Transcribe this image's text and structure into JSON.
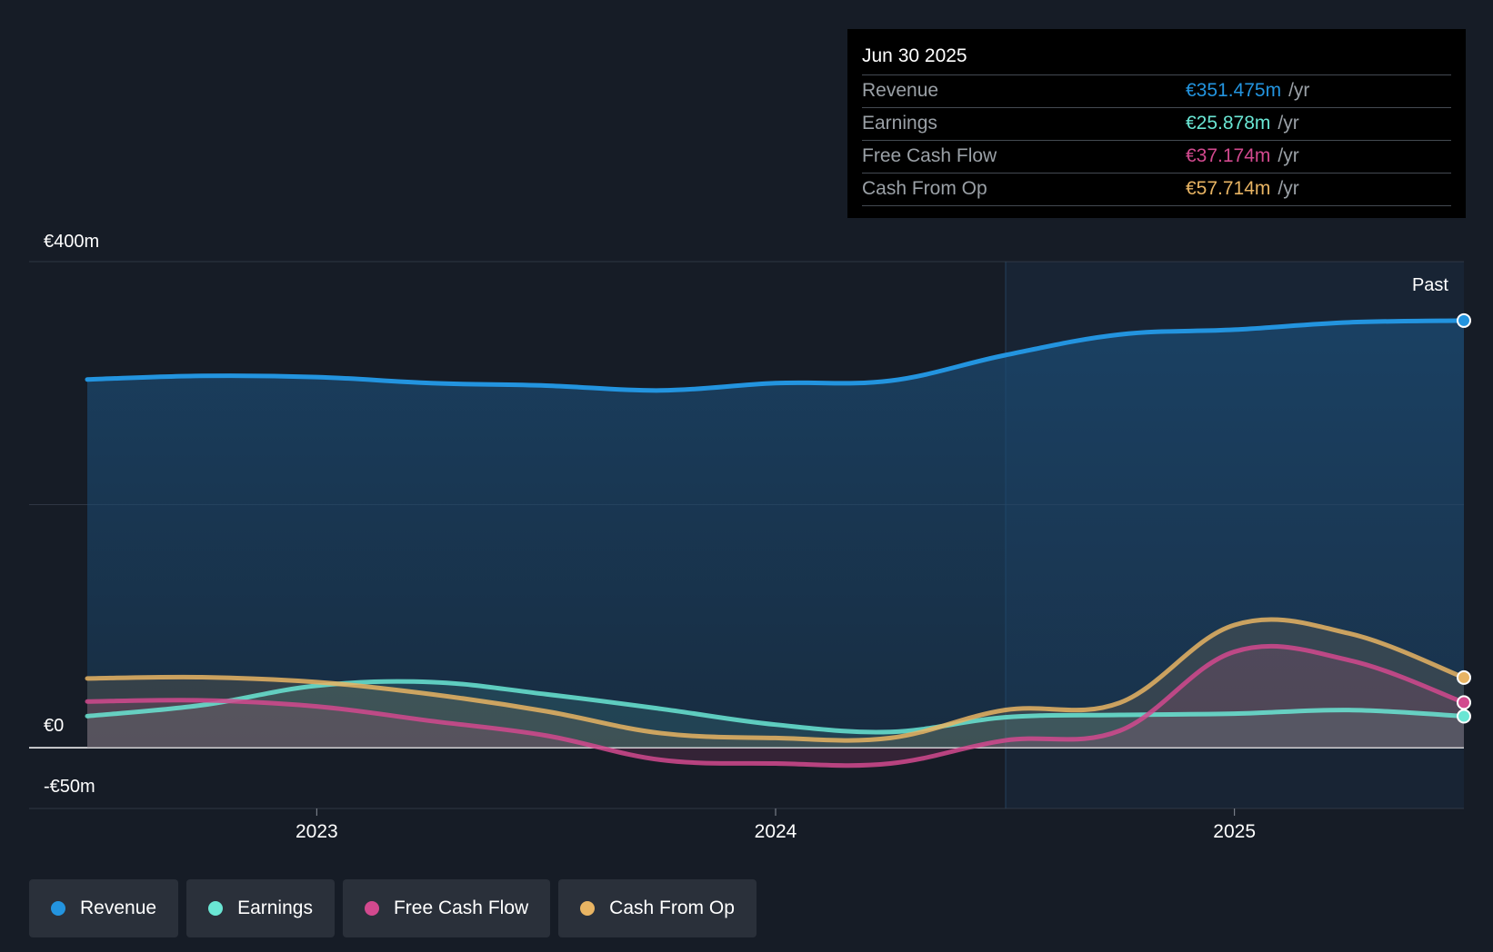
{
  "tooltip": {
    "date": "Jun 30 2025",
    "unit": "/yr",
    "rows": [
      {
        "label": "Revenue",
        "value": "€351.475m",
        "color": "#2394df"
      },
      {
        "label": "Earnings",
        "value": "€25.878m",
        "color": "#6ae6d4"
      },
      {
        "label": "Free Cash Flow",
        "value": "€37.174m",
        "color": "#d2498e"
      },
      {
        "label": "Cash From Op",
        "value": "€57.714m",
        "color": "#e8b463"
      }
    ]
  },
  "legend": [
    {
      "label": "Revenue",
      "color": "#2394df"
    },
    {
      "label": "Earnings",
      "color": "#6ae6d4"
    },
    {
      "label": "Free Cash Flow",
      "color": "#d2498e"
    },
    {
      "label": "Cash From Op",
      "color": "#e8b463"
    }
  ],
  "chart_data": {
    "type": "line",
    "title": "",
    "xlabel": "",
    "ylabel": "",
    "ylim": [
      -50,
      400
    ],
    "y_tick_labels": [
      "€400m",
      "€0",
      "-€50m"
    ],
    "x_tick_labels": [
      "2023",
      "2024",
      "2025"
    ],
    "past_label": "Past",
    "x": [
      2022.5,
      2022.75,
      2023.0,
      2023.25,
      2023.5,
      2023.75,
      2024.0,
      2024.25,
      2024.5,
      2024.75,
      2025.0,
      2025.25,
      2025.5
    ],
    "series": [
      {
        "name": "Revenue",
        "color": "#2394df",
        "values": [
          303,
          306,
          305,
          300,
          298,
          294,
          300,
          302,
          323,
          340,
          344,
          350,
          351.475
        ]
      },
      {
        "name": "Earnings",
        "color": "#6ae6d4",
        "values": [
          26,
          35,
          51,
          54,
          44,
          32,
          19,
          13,
          25,
          27,
          28,
          31,
          25.878
        ]
      },
      {
        "name": "Free Cash Flow",
        "color": "#d2498e",
        "values": [
          38,
          39,
          34,
          22,
          10,
          -10,
          -13,
          -13,
          6,
          14,
          79,
          72,
          37.174
        ]
      },
      {
        "name": "Cash From Op",
        "color": "#e8b463",
        "values": [
          57,
          58,
          54,
          44,
          30,
          12,
          8,
          8,
          31,
          37,
          101,
          94,
          57.714
        ]
      }
    ]
  }
}
